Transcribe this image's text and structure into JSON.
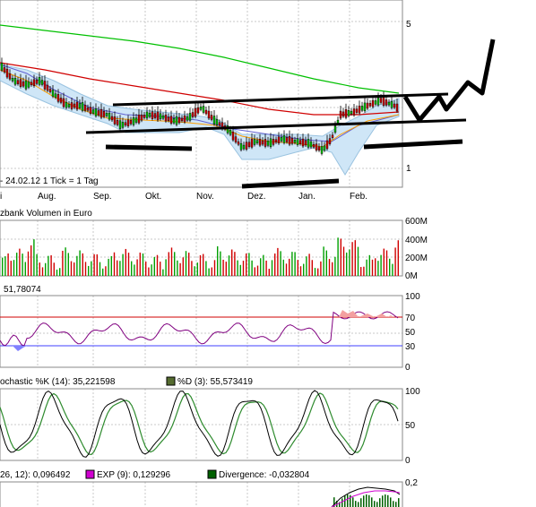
{
  "chart_data": [
    {
      "type": "candlestick",
      "panel": "price",
      "title": "",
      "info_text": "- 24.02.12   1 Tick = 1 Tag",
      "x_tick_labels": [
        "i",
        "Aug.",
        "Sep.",
        "Okt.",
        "Nov.",
        "Dez.",
        "Jan.",
        "Feb."
      ],
      "y_tick_labels": [
        "5",
        "1"
      ],
      "series": [
        {
          "name": "",
          "color": "#00c000",
          "values": []
        },
        {
          "name": "",
          "color": "#d00000",
          "values": []
        },
        {
          "name": "",
          "color": "#6060d0",
          "values": []
        },
        {
          "name": "",
          "color": "#ffa000",
          "values": []
        }
      ],
      "annotations": "hand-drawn channel and projection lines"
    },
    {
      "type": "bar",
      "panel": "volume",
      "title": "zbank Volumen in Euro",
      "y_tick_labels": [
        "600M",
        "400M",
        "200M",
        "0M"
      ],
      "ylim": [
        0,
        600
      ],
      "bar_colors": [
        "#d00000",
        "#00a000"
      ]
    },
    {
      "type": "line",
      "panel": "rsi",
      "title": "51,78074",
      "y_tick_labels": [
        "100",
        "70",
        "50",
        "30",
        "0"
      ],
      "ylim": [
        0,
        100
      ],
      "reference_lines": [
        70,
        30
      ],
      "colors": {
        "line": "#800080",
        "upper": "#d00000",
        "lower": "#4040ff"
      }
    },
    {
      "type": "line",
      "panel": "stochastic",
      "legend": [
        {
          "label": "ochastic %K (14): 35,221598",
          "color": "#000000"
        },
        {
          "label": "%D (3): 55,573419",
          "color": "#556b2f"
        }
      ],
      "y_tick_labels": [
        "100",
        "50",
        "0"
      ],
      "ylim": [
        0,
        100
      ]
    },
    {
      "type": "line",
      "panel": "macd",
      "legend": [
        {
          "label": "26, 12): 0,096492",
          "color": "#000000"
        },
        {
          "label": "EXP (9): 0,129296",
          "color": "#d000d0"
        },
        {
          "label": "Divergence: -0,032804",
          "color": "#006000"
        }
      ],
      "y_tick_labels": [
        "0,2"
      ]
    }
  ]
}
